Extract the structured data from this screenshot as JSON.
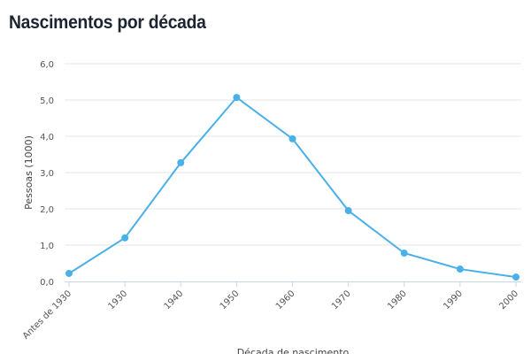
{
  "chart_data": {
    "type": "line",
    "title": "Nascimentos por década",
    "xlabel": "Década de nascimento",
    "ylabel": "Pessoas (1000)",
    "categories": [
      "Antes de 1930",
      "1930",
      "1940",
      "1950",
      "1960",
      "1970",
      "1980",
      "1990",
      "2000"
    ],
    "values": [
      0.22,
      1.2,
      3.27,
      5.07,
      3.93,
      1.95,
      0.78,
      0.34,
      0.12
    ],
    "ylim": [
      0,
      6
    ],
    "yticks": [
      "0,0",
      "1,0",
      "2,0",
      "3,0",
      "4,0",
      "5,0",
      "6,0"
    ],
    "grid": true,
    "color": "#4ab0e8"
  }
}
